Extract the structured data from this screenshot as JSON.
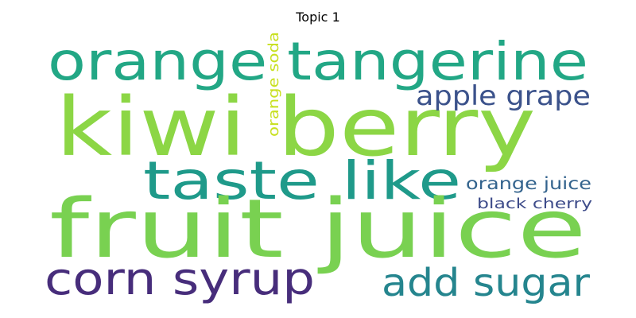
{
  "figure": {
    "title": "Topic 1"
  },
  "words": {
    "fruit_juice": {
      "text": "fruit juice",
      "color": "#79d151"
    },
    "kiwi_berry": {
      "text": "kiwi berry",
      "color": "#8cd645"
    },
    "orange_tangerine": {
      "text": "orange tangerine",
      "color": "#22a785"
    },
    "taste_like": {
      "text": "taste like",
      "color": "#1f9a8a"
    },
    "corn_syrup": {
      "text": "corn syrup",
      "color": "#472d7b"
    },
    "add_sugar": {
      "text": "add sugar",
      "color": "#25858e"
    },
    "apple_grape": {
      "text": "apple grape",
      "color": "#3b528b"
    },
    "orange_juice": {
      "text": "orange juice",
      "color": "#33638d"
    },
    "black_cherry": {
      "text": "black cherry",
      "color": "#3e4c8a"
    },
    "orange_soda": {
      "text": "orange soda",
      "color": "#c8e020"
    }
  }
}
